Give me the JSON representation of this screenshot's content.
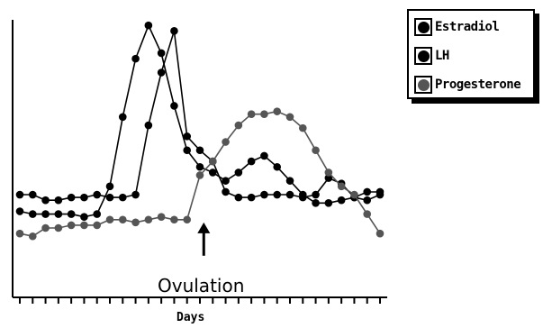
{
  "chart_data": {
    "type": "line",
    "title": "",
    "xlabel": "Days",
    "ylabel": "",
    "xlim": [
      0,
      28
    ],
    "ylim": [
      0,
      100
    ],
    "grid": false,
    "legend_position": "top-right",
    "annotation": {
      "text": "Ovulation",
      "x": 14.3,
      "arrow_top_y": 27,
      "arrow_bottom_y": 15
    },
    "series": [
      {
        "name": "Estradiol",
        "color": "#000000",
        "x": [
          0,
          1,
          2,
          3,
          4,
          5,
          6,
          7,
          8,
          9,
          10,
          11,
          12,
          13,
          14,
          15,
          16,
          17,
          18,
          19,
          20,
          21,
          22,
          23,
          24,
          25,
          26,
          27,
          28
        ],
        "y": [
          37,
          37,
          35,
          35,
          36,
          36,
          37,
          36,
          36,
          37,
          62,
          81,
          96,
          58,
          53,
          49,
          38,
          36,
          36,
          37,
          37,
          37,
          36,
          37,
          43,
          41,
          36,
          38,
          38
        ]
      },
      {
        "name": "LH",
        "color": "#000000",
        "x": [
          0,
          1,
          2,
          3,
          4,
          5,
          6,
          7,
          8,
          9,
          10,
          11,
          12,
          13,
          14,
          15,
          16,
          17,
          18,
          19,
          20,
          21,
          22,
          23,
          24,
          25,
          26,
          27,
          28
        ],
        "y": [
          31,
          30,
          30,
          30,
          30,
          29,
          30,
          40,
          65,
          86,
          98,
          88,
          69,
          53,
          47,
          45,
          42,
          45,
          49,
          51,
          47,
          42,
          37,
          34,
          34,
          35,
          36,
          35,
          37
        ]
      },
      {
        "name": "Progesterone",
        "color": "#555555",
        "x": [
          0,
          1,
          2,
          3,
          4,
          5,
          6,
          7,
          8,
          9,
          10,
          11,
          12,
          13,
          14,
          15,
          16,
          17,
          18,
          19,
          20,
          21,
          22,
          23,
          24,
          25,
          26,
          27,
          28
        ],
        "y": [
          23,
          22,
          25,
          25,
          26,
          26,
          26,
          28,
          28,
          27,
          28,
          29,
          28,
          28,
          44,
          49,
          56,
          62,
          66,
          66,
          67,
          65,
          61,
          53,
          45,
          40,
          37,
          30,
          23
        ]
      }
    ]
  }
}
